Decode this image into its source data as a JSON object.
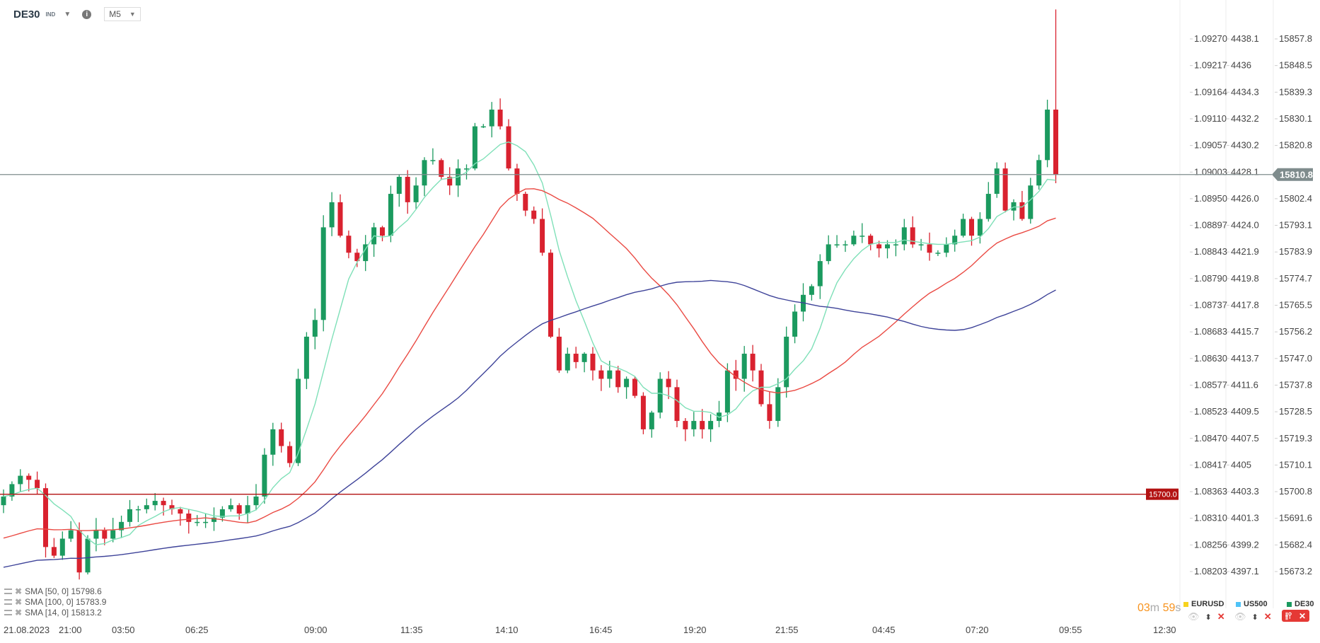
{
  "header": {
    "symbol": "DE30",
    "symbol_type": "IND",
    "info_icon": "i",
    "timeframe": "M5"
  },
  "colors": {
    "up": "#1b9a5f",
    "down": "#d9222f",
    "sma14": "#7fe0b8",
    "sma50": "#ea4a43",
    "sma100": "#3e4399",
    "level_line": "#b31212",
    "price_tag": "#7f8c8d"
  },
  "chart_data": {
    "type": "candlestick",
    "instrument": "DE30",
    "price_axis": {
      "DE30": [
        "15857.8",
        "15848.5",
        "15839.3",
        "15830.1",
        "15820.8",
        "15810.8",
        "15802.4",
        "15793.1",
        "15783.9",
        "15774.7",
        "15765.5",
        "15756.2",
        "15747.0",
        "15737.8",
        "15728.5",
        "15719.3",
        "15710.1",
        "15700.8",
        "15691.6",
        "15682.4",
        "15673.2"
      ],
      "EURUSD": [
        "1.09270",
        "1.09217",
        "1.09164",
        "1.09110",
        "1.09057",
        "1.09003",
        "1.08950",
        "1.08897",
        "1.08843",
        "1.08790",
        "1.08737",
        "1.08683",
        "1.08630",
        "1.08577",
        "1.08523",
        "1.08470",
        "1.08417",
        "1.08363",
        "1.08310",
        "1.08256",
        "1.08203"
      ],
      "US500": [
        "4438.1",
        "4436",
        "4434.3",
        "4432.2",
        "4430.2",
        "4428.1",
        "4426.0",
        "4424.0",
        "4421.9",
        "4419.8",
        "4417.8",
        "4415.7",
        "4413.7",
        "4411.6",
        "4409.5",
        "4407.5",
        "4405",
        "4403.3",
        "4401.3",
        "4399.2",
        "4397.1"
      ]
    },
    "ylim": [
      15673.2,
      15857.8
    ],
    "x_ticks": [
      "21.08.2023",
      "21:00",
      "03:50",
      "06:25",
      "09:00",
      "11:35",
      "14:10",
      "16:45",
      "19:20",
      "21:55",
      "04:45",
      "07:20",
      "09:55",
      "12:30"
    ],
    "closes": [
      15699.2,
      15703.5,
      15706.4,
      15705.0,
      15702.1,
      15681.7,
      15678.7,
      15684.6,
      15687.5,
      15672.9,
      15684.6,
      15687.5,
      15684.6,
      15687.5,
      15690.4,
      15694.8,
      15694.8,
      15696.2,
      15697.7,
      15696.2,
      15694.8,
      15693.3,
      15690.4,
      15690.4,
      15690.4,
      15691.9,
      15694.8,
      15696.2,
      15693.3,
      15696.2,
      15699.2,
      15713.7,
      15722.5,
      15716.7,
      15710.8,
      15740.0,
      15754.6,
      15760.4,
      15792.5,
      15801.2,
      15789.6,
      15783.7,
      15780.8,
      15786.6,
      15792.5,
      15789.6,
      15804.1,
      15810.0,
      15801.2,
      15807.0,
      15815.8,
      15815.8,
      15810.0,
      15807.0,
      15812.9,
      15812.9,
      15827.5,
      15827.5,
      15833.3,
      15827.5,
      15812.9,
      15804.1,
      15798.3,
      15795.4,
      15783.7,
      15754.6,
      15742.9,
      15748.7,
      15745.8,
      15748.7,
      15742.9,
      15740.0,
      15742.9,
      15737.1,
      15740.0,
      15734.1,
      15722.5,
      15728.3,
      15740.0,
      15737.1,
      15725.4,
      15722.5,
      15725.4,
      15722.5,
      15725.4,
      15728.3,
      15742.9,
      15740.0,
      15748.7,
      15742.9,
      15731.2,
      15725.4,
      15737.1,
      15754.6,
      15763.3,
      15769.1,
      15772.1,
      15780.8,
      15786.6,
      15786.6,
      15786.6,
      15789.6,
      15789.6,
      15786.6,
      15785.2,
      15786.6,
      15786.6,
      15792.5,
      15786.6,
      15786.6,
      15783.7,
      15783.7,
      15786.6,
      15789.6,
      15795.4,
      15789.6,
      15795.4,
      15804.1,
      15812.9,
      15798.3,
      15801.2,
      15795.4,
      15807.0,
      15815.8,
      15833.3,
      15810.8
    ],
    "last_high": 15868.0,
    "current_price": "15810.8",
    "level_line": {
      "price": 15700.0,
      "label": "15700.0"
    },
    "indicators": [
      {
        "name": "SMA",
        "params": "[50, 0]",
        "value": "15798.6",
        "label": "SMA [50, 0] 15798.6"
      },
      {
        "name": "SMA",
        "params": "[100, 0]",
        "value": "15783.9",
        "label": "SMA [100, 0] 15783.9"
      },
      {
        "name": "SMA",
        "params": "[14, 0]",
        "value": "15813.2",
        "label": "SMA [14, 0] 15813.2"
      }
    ]
  },
  "footer": {
    "timer": {
      "minutes": "03",
      "m": "m",
      "seconds": "59",
      "s": "s"
    },
    "legend": [
      {
        "symbol": "EURUSD",
        "color": "#f7d31e"
      },
      {
        "symbol": "US500",
        "color": "#4fc3f7"
      },
      {
        "symbol": "DE30",
        "color": "#1b9a5f"
      }
    ],
    "icons": {
      "eye": "👁",
      "updown": "⬍",
      "close": "✕",
      "candles": "⫲⫯"
    }
  }
}
